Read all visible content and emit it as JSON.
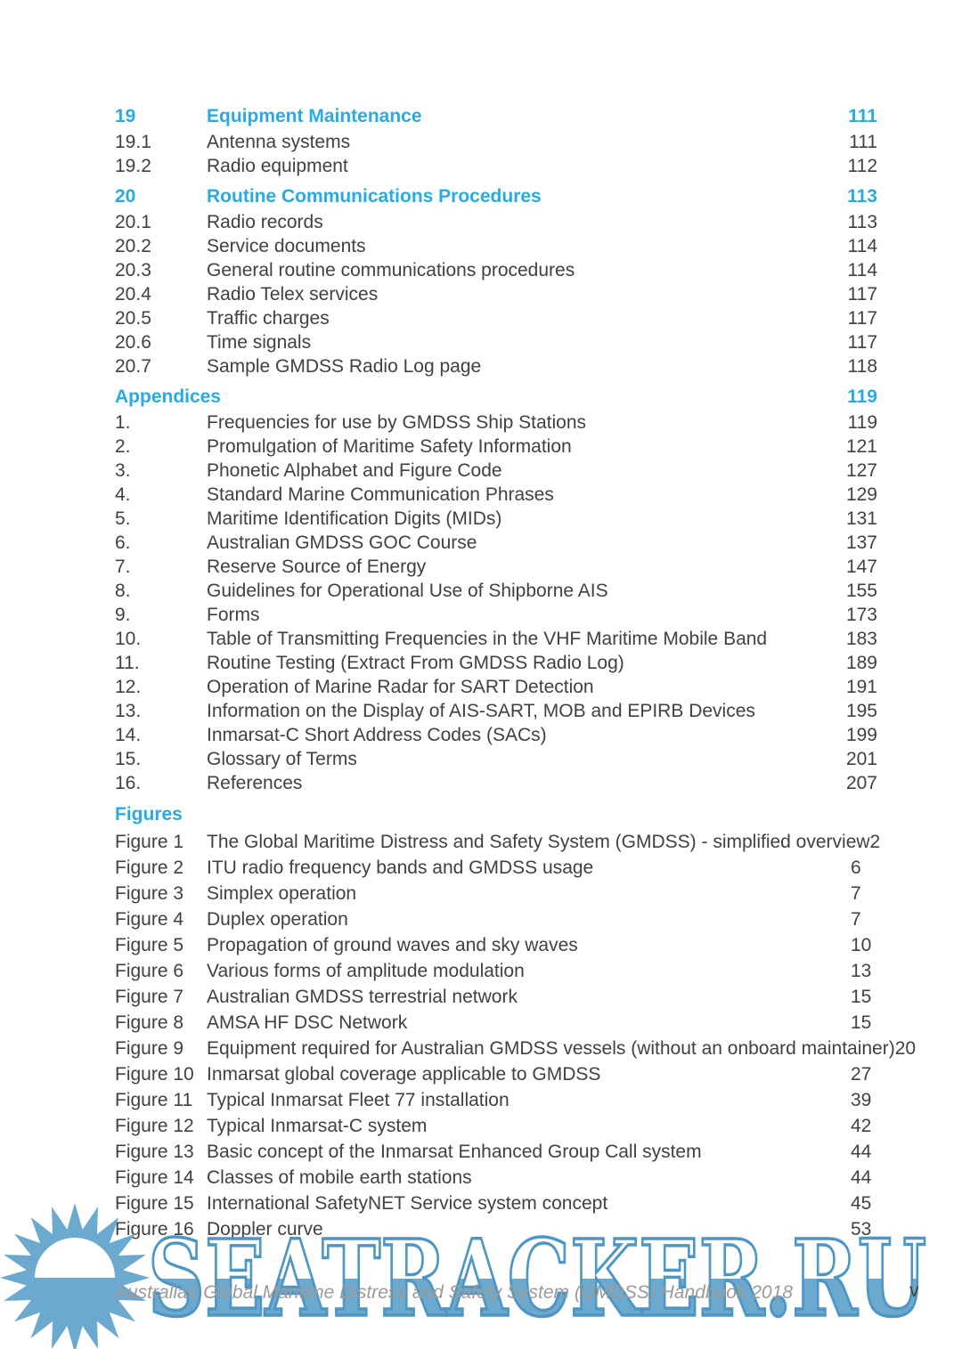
{
  "document": {
    "footer_text": "Australian Global Maritime Distress and Safety System (GMDSS) Handbook 2018",
    "page_number": "v",
    "watermark_text": "SEATRACKER.RU",
    "watermark_logo": "sun-logo"
  },
  "colors": {
    "accent": "#29ABE2",
    "body_text": "#414042",
    "watermark_fill": "#6CA9CF",
    "watermark_outline": "#4E96C3",
    "footer_text": "#9A9A9A",
    "page_background": "#FFFFFF"
  },
  "toc": {
    "groups": [
      {
        "name": "chapter-19",
        "rows": [
          {
            "num": "19",
            "title": "Equipment Maintenance",
            "page": "111",
            "heading": true
          },
          {
            "num": "19.1",
            "title": "Antenna systems",
            "page": "111"
          },
          {
            "num": "19.2",
            "title": "Radio equipment",
            "page": "112"
          }
        ]
      },
      {
        "name": "chapter-20",
        "rows": [
          {
            "num": "20",
            "title": "Routine Communications Procedures",
            "page": "113",
            "heading": true
          },
          {
            "num": "20.1",
            "title": "Radio records",
            "page": "113"
          },
          {
            "num": "20.2",
            "title": "Service documents",
            "page": "114"
          },
          {
            "num": "20.3",
            "title": "General routine communications procedures",
            "page": "114"
          },
          {
            "num": "20.4",
            "title": "Radio Telex services",
            "page": "117"
          },
          {
            "num": "20.5",
            "title": "Traffic charges",
            "page": "117"
          },
          {
            "num": "20.6",
            "title": "Time signals",
            "page": "117"
          },
          {
            "num": "20.7",
            "title": "Sample GMDSS Radio Log page",
            "page": "118"
          }
        ]
      },
      {
        "name": "appendices",
        "rows": [
          {
            "num": "",
            "title": "Appendices",
            "page": "119",
            "heading": true,
            "flush": true
          },
          {
            "num": "1.",
            "title": "Frequencies for use by GMDSS Ship Stations",
            "page": "119"
          },
          {
            "num": "2.",
            "title": "Promulgation of Maritime Safety Information",
            "page": "121"
          },
          {
            "num": "3.",
            "title": "Phonetic Alphabet and Figure Code",
            "page": "127"
          },
          {
            "num": "4.",
            "title": "Standard Marine Communication Phrases",
            "page": "129"
          },
          {
            "num": "5.",
            "title": "Maritime Identification Digits (MIDs)",
            "page": "131"
          },
          {
            "num": "6.",
            "title": "Australian GMDSS GOC Course",
            "page": "137"
          },
          {
            "num": "7.",
            "title": "Reserve Source of Energy",
            "page": "147"
          },
          {
            "num": "8.",
            "title": "Guidelines for Operational Use of Shipborne AIS",
            "page": "155"
          },
          {
            "num": "9.",
            "title": "Forms",
            "page": "173"
          },
          {
            "num": "10.",
            "title": "Table of Transmitting Frequencies in the VHF Maritime Mobile Band",
            "page": "183"
          },
          {
            "num": "11.",
            "title": "Routine Testing (Extract From GMDSS Radio Log)",
            "page": "189"
          },
          {
            "num": "12.",
            "title": "Operation of Marine Radar for SART Detection",
            "page": "191"
          },
          {
            "num": "13.",
            "title": "Information on the Display of AIS-SART, MOB and EPIRB Devices",
            "page": "195"
          },
          {
            "num": "14.",
            "title": "Inmarsat-C Short Address Codes (SACs)",
            "page": "199"
          },
          {
            "num": "15.",
            "title": "Glossary of Terms",
            "page": "201"
          },
          {
            "num": "16.",
            "title": "References",
            "page": "207"
          }
        ]
      },
      {
        "name": "figures",
        "figure_style": true,
        "rows": [
          {
            "num": "",
            "title": "Figures",
            "page": "",
            "heading": true,
            "flush": true
          },
          {
            "num": "Figure 1",
            "title": "The Global Maritime Distress and Safety System (GMDSS) - simplified overview",
            "page": "2"
          },
          {
            "num": "Figure 2",
            "title": "ITU radio frequency bands and GMDSS usage",
            "page": "6"
          },
          {
            "num": "Figure 3",
            "title": "Simplex operation",
            "page": "7"
          },
          {
            "num": "Figure 4",
            "title": "Duplex operation",
            "page": "7"
          },
          {
            "num": "Figure 5",
            "title": "Propagation of ground waves and sky waves",
            "page": "10"
          },
          {
            "num": "Figure 6",
            "title": "Various forms of amplitude modulation",
            "page": "13"
          },
          {
            "num": "Figure 7",
            "title": "Australian GMDSS terrestrial network",
            "page": "15"
          },
          {
            "num": "Figure 8",
            "title": "AMSA HF DSC Network",
            "page": "15"
          },
          {
            "num": "Figure 9",
            "title": "Equipment required for Australian GMDSS vessels (without an onboard maintainer)",
            "page": "20"
          },
          {
            "num": "Figure 10",
            "title": "Inmarsat global coverage applicable to GMDSS",
            "page": "27"
          },
          {
            "num": "Figure 11",
            "title": "Typical Inmarsat Fleet 77 installation",
            "page": "39"
          },
          {
            "num": "Figure 12",
            "title": "Typical Inmarsat-C system",
            "page": "42"
          },
          {
            "num": "Figure 13",
            "title": "Basic concept of the Inmarsat Enhanced Group Call system",
            "page": "44"
          },
          {
            "num": "Figure 14",
            "title": "Classes of mobile earth stations",
            "page": "44"
          },
          {
            "num": "Figure 15",
            "title": "International SafetyNET Service system concept",
            "page": "45"
          },
          {
            "num": "Figure 16",
            "title": "Doppler curve",
            "page": "53"
          }
        ]
      }
    ]
  }
}
